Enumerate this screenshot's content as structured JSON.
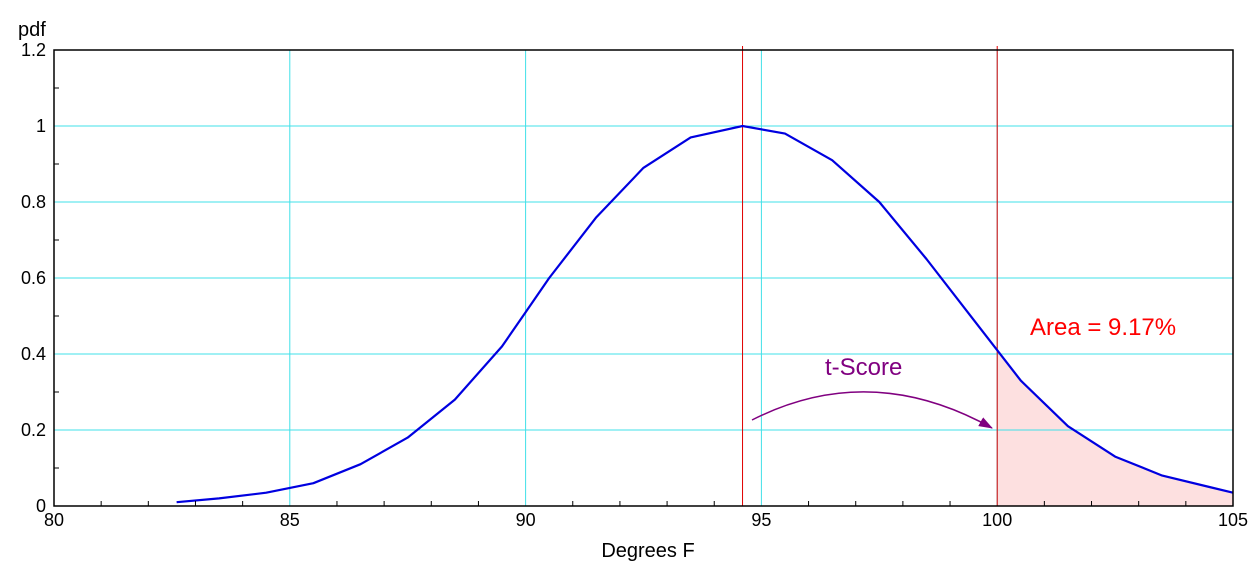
{
  "chart_data": {
    "type": "line",
    "xlabel": "Degrees F",
    "ylabel": "pdf",
    "xlim": [
      80,
      105
    ],
    "ylim": [
      0,
      1.2
    ],
    "xticks": [
      80,
      85,
      90,
      95,
      100,
      105
    ],
    "xtick_labels": [
      "80",
      "85",
      "90",
      "95",
      "100",
      "105"
    ],
    "yticks": [
      0,
      0.2,
      0.4,
      0.6,
      0.8,
      1,
      1.2
    ],
    "ytick_labels": [
      "0",
      "0.2",
      "0.4",
      "0.6",
      "0.8",
      "1",
      "1.2"
    ],
    "grid": true,
    "series": [
      {
        "color": "#0000e0",
        "x": [
          82.6,
          83.5,
          84.5,
          85.5,
          86.5,
          87.5,
          88.5,
          89.5,
          90,
          90.5,
          91.5,
          92.5,
          93.5,
          94.6,
          95.5,
          96.5,
          97.5,
          98.5,
          99.5,
          100,
          100.5,
          101.5,
          102.5,
          103.5,
          104.5,
          105
        ],
        "y": [
          0.01,
          0.02,
          0.035,
          0.06,
          0.11,
          0.18,
          0.28,
          0.42,
          0.51,
          0.6,
          0.76,
          0.89,
          0.97,
          1.0,
          0.98,
          0.91,
          0.8,
          0.65,
          0.49,
          0.41,
          0.33,
          0.21,
          0.13,
          0.08,
          0.05,
          0.035
        ]
      }
    ],
    "vertical_lines": [
      {
        "x": 94.6,
        "color": "#e00000"
      },
      {
        "x": 100,
        "color": "#e00000"
      }
    ],
    "shaded_region": {
      "x_from": 100,
      "x_to": 105,
      "color": "#fde0e0"
    },
    "colors": {
      "grid": "#40e0e8",
      "axis": "#000000",
      "curve": "#0000e0",
      "marker": "#e00000",
      "annotation_area": "#ff0000",
      "annotation_t": "#800080"
    },
    "annotations": {
      "area": "Area = 9.17%",
      "t_score": "t-Score"
    }
  }
}
